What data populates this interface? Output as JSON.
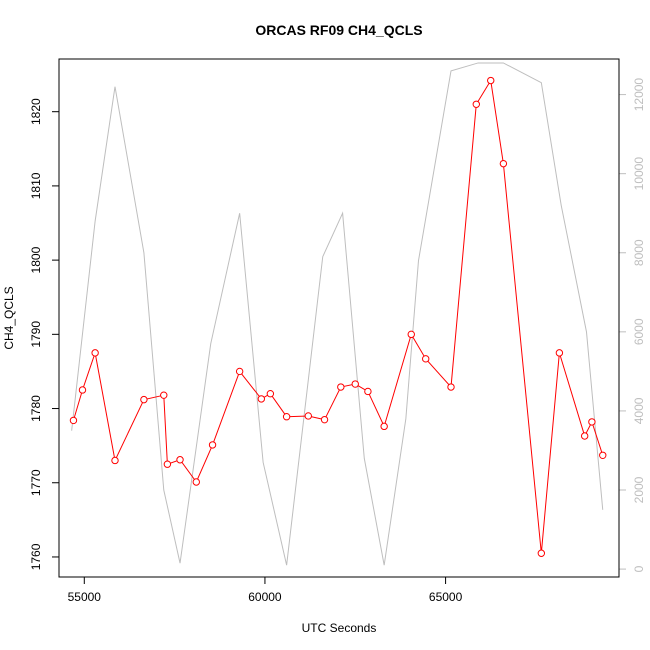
{
  "chart_data": {
    "type": "line",
    "title": "ORCAS RF09 CH4_QCLS",
    "xlabel": "UTC Seconds",
    "ylabel": "CH4_QCLS",
    "y2label": "",
    "xlim": [
      54300,
      69800
    ],
    "ylim": [
      1757.3,
      1827.1
    ],
    "y2lim": [
      -200,
      12900
    ],
    "x_ticks": [
      55000,
      60000,
      65000
    ],
    "y_ticks": [
      1760,
      1770,
      1780,
      1790,
      1800,
      1810,
      1820
    ],
    "y2_ticks": [
      0,
      2000,
      4000,
      6000,
      8000,
      10000,
      12000
    ],
    "grid": false,
    "colors": {
      "primary": "#ff0000",
      "secondary": "#bebebe"
    },
    "series": [
      {
        "axis": "left",
        "style": "line+circle",
        "x": [
          54700,
          54950,
          55300,
          55850,
          56650,
          57200,
          57300,
          57650,
          58100,
          58550,
          59300,
          59900,
          60150,
          60600,
          61200,
          61650,
          62100,
          62500,
          62850,
          63300,
          64050,
          64450,
          65150,
          65850,
          66250,
          66600,
          67650,
          68150,
          68850,
          69050,
          69350
        ],
        "y": [
          1778.4,
          1782.5,
          1787.5,
          1773.0,
          1781.2,
          1781.8,
          1772.5,
          1773.1,
          1770.1,
          1775.1,
          1785.0,
          1781.3,
          1782.0,
          1778.9,
          1779.0,
          1778.5,
          1782.9,
          1783.3,
          1782.3,
          1777.6,
          1790.0,
          1786.7,
          1782.9,
          1821.0,
          1824.2,
          1813.0,
          1760.5,
          1787.5,
          1776.3,
          1778.2,
          1773.7
        ]
      },
      {
        "axis": "right",
        "style": "line",
        "x": [
          54650,
          55300,
          55850,
          56650,
          57200,
          57650,
          58500,
          59300,
          59950,
          60600,
          61600,
          62150,
          62750,
          63300,
          63900,
          64250,
          65150,
          65900,
          66600,
          67650,
          68200,
          68900,
          69350
        ],
        "y": [
          3500,
          8800,
          12200,
          8000,
          2000,
          150,
          5700,
          9000,
          2700,
          100,
          7900,
          9000,
          2800,
          100,
          3800,
          7800,
          12600,
          12800,
          12800,
          12300,
          9200,
          6000,
          1500
        ]
      }
    ]
  }
}
